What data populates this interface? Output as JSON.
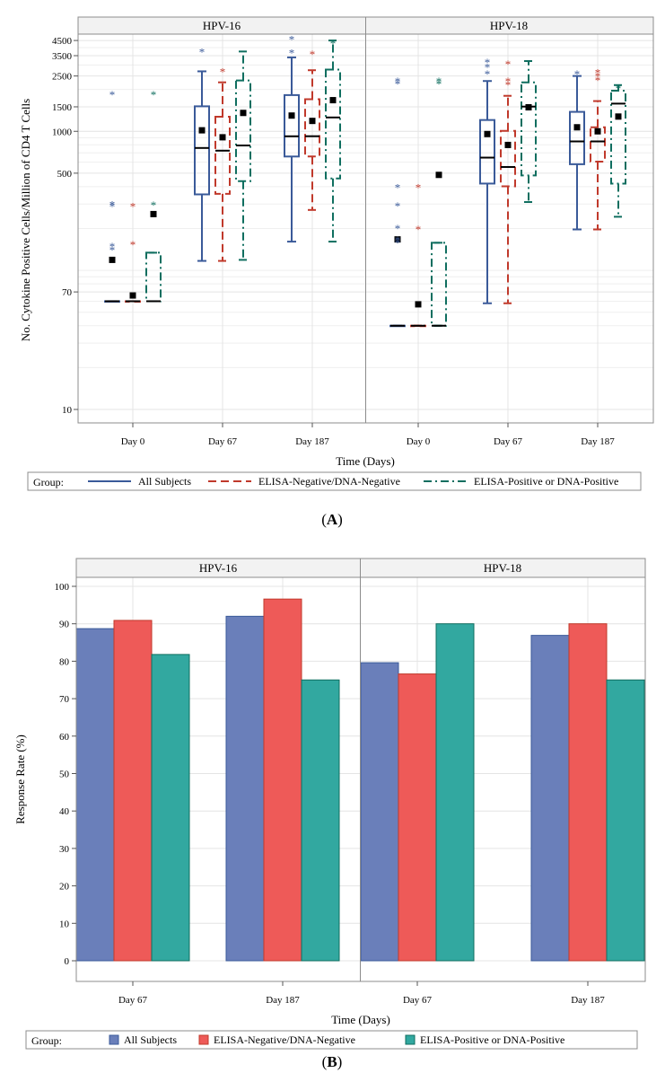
{
  "figure": {
    "label_a": "A",
    "label_b": "B"
  },
  "legend": {
    "title": "Group:",
    "items": [
      "All Subjects",
      "ELISA-Negative/DNA-Negative",
      "ELISA-Positive or DNA-Positive"
    ]
  },
  "colors": {
    "all": "#3a5a99",
    "neg": "#c0392b",
    "pos": "#0f6e5f",
    "bar_all": "#6a7fba",
    "bar_neg": "#ee5a58",
    "bar_pos": "#32a8a0",
    "frame": "#8c8c8c",
    "grid": "#e4e4e4"
  },
  "chart_data": [
    {
      "type": "box",
      "ylabel": "No. Cytokine Positive Cells/Million of CD4 T Cells",
      "xlabel": "Time (Days)",
      "yscale": "log",
      "ylim": [
        8,
        5000
      ],
      "yticks": [
        10,
        70,
        500,
        1000,
        1500,
        2500,
        3500,
        4500
      ],
      "categories": [
        "Day 0",
        "Day 67",
        "Day 187"
      ],
      "panels": [
        {
          "name": "HPV-16",
          "groups": {
            "Day 0": [
              {
                "series": "All Subjects",
                "q1": 60,
                "median": 60,
                "q3": 60,
                "wlo": 60,
                "whi": 60,
                "mean": 119,
                "outliers": [
                  1850,
                  299,
                  289,
                  150,
                  141
                ]
              },
              {
                "series": "ELISA-Negative/DNA-Negative",
                "q1": 60,
                "median": 60,
                "q3": 60,
                "wlo": 60,
                "whi": 60,
                "mean": 66,
                "outliers": [
                  291,
                  154
                ]
              },
              {
                "series": "ELISA-Positive or DNA-Positive",
                "q1": 60,
                "median": 60,
                "q3": 134,
                "wlo": 60,
                "whi": 134,
                "mean": 254,
                "outliers": [
                  1850,
                  296
                ]
              }
            ],
            "Day 67": [
              {
                "series": "All Subjects",
                "q1": 352,
                "median": 759,
                "q3": 1513,
                "wlo": 117,
                "whi": 2700,
                "mean": 1017,
                "outliers": [
                  3750
                ]
              },
              {
                "series": "ELISA-Negative/DNA-Negative",
                "q1": 355,
                "median": 726,
                "q3": 1274,
                "wlo": 117,
                "whi": 2250,
                "mean": 906,
                "outliers": [
                  2700
                ]
              },
              {
                "series": "ELISA-Positive or DNA-Positive",
                "q1": 438,
                "median": 791,
                "q3": 2320,
                "wlo": 119,
                "whi": 3750,
                "mean": 1356,
                "outliers": []
              }
            ],
            "Day 187": [
              {
                "series": "All Subjects",
                "q1": 659,
                "median": 921,
                "q3": 1822,
                "wlo": 161,
                "whi": 3400,
                "mean": 1298,
                "outliers": [
                  4600,
                  3700
                ]
              },
              {
                "series": "ELISA-Negative/DNA-Negative",
                "q1": 659,
                "median": 922,
                "q3": 1702,
                "wlo": 272,
                "whi": 2750,
                "mean": 1188,
                "outliers": [
                  3600
                ]
              },
              {
                "series": "ELISA-Positive or DNA-Positive",
                "q1": 458,
                "median": 1258,
                "q3": 2781,
                "wlo": 161,
                "whi": 4500,
                "mean": 1675,
                "outliers": [
                  4300
                ]
              }
            ]
          }
        },
        {
          "name": "HPV-18",
          "groups": {
            "Day 0": [
              {
                "series": "All Subjects",
                "q1": 40,
                "median": 40,
                "q3": 40,
                "wlo": 40,
                "whi": 40,
                "mean": 167,
                "outliers": [
                  2300,
                  2200,
                  397,
                  292,
                  201,
                  166,
                  159
                ]
              },
              {
                "series": "ELISA-Negative/DNA-Negative",
                "q1": 40,
                "median": 40,
                "q3": 40,
                "wlo": 40,
                "whi": 40,
                "mean": 57,
                "outliers": [
                  397,
                  198
                ]
              },
              {
                "series": "ELISA-Positive or DNA-Positive",
                "q1": 40,
                "median": 40,
                "q3": 158,
                "wlo": 40,
                "whi": 158,
                "mean": 486,
                "outliers": [
                  2300,
                  2200
                ]
              }
            ],
            "Day 67": [
              {
                "series": "All Subjects",
                "q1": 421,
                "median": 647,
                "q3": 1206,
                "wlo": 58,
                "whi": 2300,
                "mean": 956,
                "outliers": [
                  3150,
                  2900,
                  2600
                ]
              },
              {
                "series": "ELISA-Negative/DNA-Negative",
                "q1": 402,
                "median": 554,
                "q3": 1007,
                "wlo": 58,
                "whi": 1800,
                "mean": 798,
                "outliers": [
                  3050,
                  2300,
                  2180
                ]
              },
              {
                "series": "ELISA-Positive or DNA-Positive",
                "q1": 482,
                "median": 1506,
                "q3": 2250,
                "wlo": 310,
                "whi": 3200,
                "mean": 1489,
                "outliers": []
              }
            ],
            "Day 187": [
              {
                "series": "All Subjects",
                "q1": 580,
                "median": 846,
                "q3": 1380,
                "wlo": 197,
                "whi": 2500,
                "mean": 1069,
                "outliers": [
                  2600
                ]
              },
              {
                "series": "ELISA-Negative/DNA-Negative",
                "q1": 606,
                "median": 846,
                "q3": 1070,
                "wlo": 197,
                "whi": 1650,
                "mean": 1000,
                "outliers": [
                  2650,
                  2500,
                  2350
                ]
              },
              {
                "series": "ELISA-Positive or DNA-Positive",
                "q1": 421,
                "median": 1582,
                "q3": 1960,
                "wlo": 243,
                "whi": 2150,
                "mean": 1277,
                "outliers": [
                  2050
                ]
              }
            ]
          }
        }
      ]
    },
    {
      "type": "bar",
      "ylabel": "Response Rate (%)",
      "xlabel": "Time (Days)",
      "ylim": [
        0,
        100
      ],
      "yticks": [
        0,
        10,
        20,
        30,
        40,
        50,
        60,
        70,
        80,
        90,
        100
      ],
      "categories": [
        "Day 67",
        "Day 187"
      ],
      "panels": [
        {
          "name": "HPV-16",
          "series": [
            {
              "name": "All Subjects",
              "values": [
                88.7,
                92.0
              ]
            },
            {
              "name": "ELISA-Negative/DNA-Negative",
              "values": [
                90.9,
                96.6
              ]
            },
            {
              "name": "ELISA-Positive or DNA-Positive",
              "values": [
                81.8,
                75.0
              ]
            }
          ]
        },
        {
          "name": "HPV-18",
          "series": [
            {
              "name": "All Subjects",
              "values": [
                79.6,
                86.9
              ]
            },
            {
              "name": "ELISA-Negative/DNA-Negative",
              "values": [
                76.6,
                90.0
              ]
            },
            {
              "name": "ELISA-Positive or DNA-Positive",
              "values": [
                90.0,
                75.0
              ]
            }
          ]
        }
      ]
    }
  ]
}
